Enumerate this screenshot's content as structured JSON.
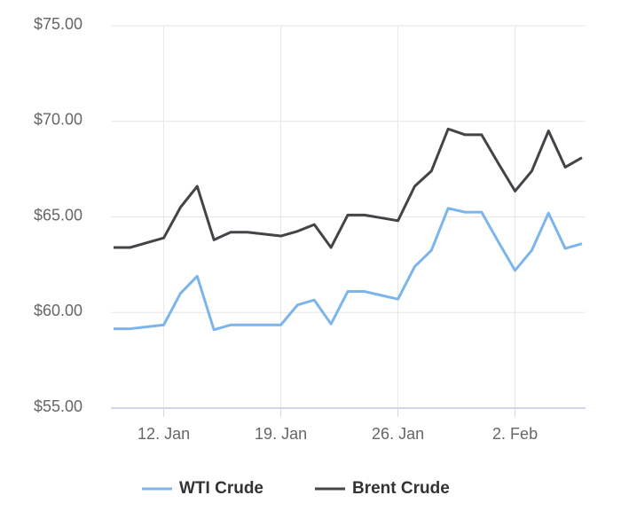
{
  "chart_data": {
    "type": "line",
    "categories": [
      null,
      null,
      null,
      "12. Jan",
      null,
      null,
      null,
      null,
      null,
      null,
      "19. Jan",
      null,
      null,
      null,
      null,
      null,
      null,
      "26. Jan",
      null,
      null,
      null,
      null,
      null,
      null,
      "2. Feb",
      null,
      null,
      null,
      null
    ],
    "series": [
      {
        "name": "WTI Crude",
        "color": "#7cb5ec",
        "values": [
          59.15,
          59.15,
          59.25,
          59.35,
          61.0,
          61.9,
          59.1,
          59.35,
          59.35,
          59.35,
          59.35,
          60.4,
          60.65,
          59.4,
          61.1,
          61.1,
          60.9,
          60.7,
          62.4,
          63.25,
          65.45,
          65.25,
          65.25,
          63.7,
          62.2,
          63.25,
          65.2,
          63.35,
          63.6
        ]
      },
      {
        "name": "Brent Crude",
        "color": "#434348",
        "values": [
          63.4,
          63.4,
          63.65,
          63.9,
          65.5,
          66.6,
          63.8,
          64.2,
          64.2,
          64.1,
          64.0,
          64.25,
          64.6,
          63.4,
          65.1,
          65.1,
          64.95,
          64.8,
          66.6,
          67.4,
          69.6,
          69.3,
          69.3,
          67.8,
          66.35,
          67.4,
          69.5,
          67.6,
          68.1
        ]
      }
    ],
    "ylim": [
      55,
      75
    ],
    "yticks": [
      {
        "value": 55,
        "label": "$55.00"
      },
      {
        "value": 60,
        "label": "$60.00"
      },
      {
        "value": 65,
        "label": "$65.00"
      },
      {
        "value": 70,
        "label": "$70.00"
      },
      {
        "value": 75,
        "label": "$75.00"
      }
    ],
    "grid": true,
    "legend": "bottom"
  }
}
